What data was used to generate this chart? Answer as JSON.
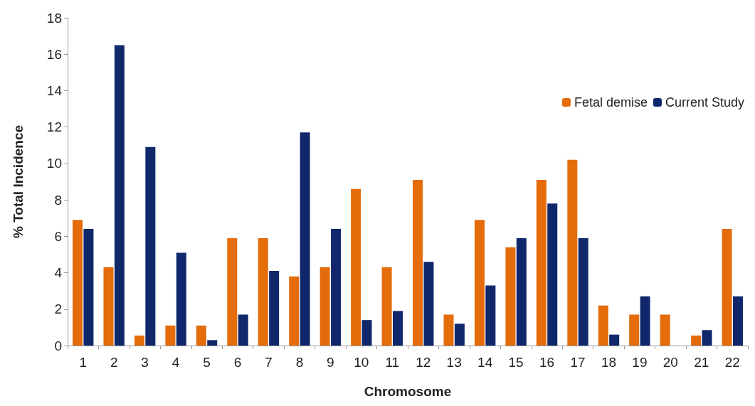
{
  "chart_data": {
    "type": "bar",
    "xlabel": "Chromosome",
    "ylabel": "% Total Incidence",
    "categories": [
      "1",
      "2",
      "3",
      "4",
      "5",
      "6",
      "7",
      "8",
      "9",
      "10",
      "11",
      "12",
      "13",
      "14",
      "15",
      "16",
      "17",
      "18",
      "19",
      "20",
      "21",
      "22"
    ],
    "series": [
      {
        "name": "Fetal demise",
        "color": "#e46c0a",
        "values": [
          6.9,
          4.3,
          0.55,
          1.1,
          1.1,
          5.9,
          5.9,
          3.8,
          4.3,
          8.6,
          4.3,
          9.1,
          1.7,
          6.9,
          5.4,
          9.1,
          10.2,
          2.2,
          1.7,
          1.7,
          0.55,
          6.4
        ]
      },
      {
        "name": "Current Study",
        "color": "#10286b",
        "values": [
          6.4,
          16.5,
          10.9,
          5.1,
          0.3,
          1.7,
          4.1,
          11.7,
          6.4,
          1.4,
          1.9,
          4.6,
          1.2,
          3.3,
          5.9,
          7.8,
          5.9,
          0.6,
          2.7,
          0,
          0.85,
          2.7
        ]
      }
    ],
    "ylim": [
      0,
      18
    ],
    "yticks": [
      0,
      2,
      4,
      6,
      8,
      10,
      12,
      14,
      16,
      18
    ],
    "grid": false,
    "legend": "right"
  }
}
